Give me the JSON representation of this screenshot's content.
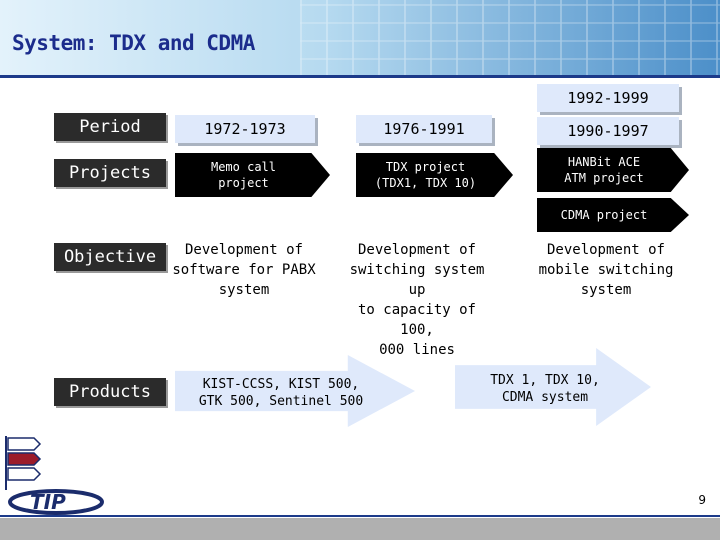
{
  "title": "System: TDX and CDMA",
  "rows": {
    "period_label": "Period",
    "projects_label": "Projects",
    "objective_label": "Objective",
    "products_label": "Products"
  },
  "periods": {
    "p1": "1972-1973",
    "p2": "1976-1991",
    "p3_top": "1992-1999",
    "p3": "1990-1997"
  },
  "projects": {
    "p1": "Memo call\nproject",
    "p2": "TDX project\n(TDX1, TDX 10)",
    "p3": "HANBit ACE\nATM project",
    "p4": "CDMA project"
  },
  "objectives": {
    "o1": "Development of\nsoftware for PABX\nsystem",
    "o2": "Development of\nswitching system up\nto capacity of 100,\n000 lines",
    "o3": "Development of\nmobile switching\nsystem"
  },
  "products": {
    "a1": "KIST-CCSS, KIST 500,\nGTK 500, Sentinel 500",
    "a2": "TDX 1, TDX 10,\nCDMA system"
  },
  "logo_text": "TIP",
  "page_number": "9",
  "colors": {
    "title": "#1b2c8c",
    "label_bg": "#2b2b2b",
    "box_bg": "#dfe9fb",
    "pentagon_bg": "#000000",
    "logo_red": "#9b1b2a",
    "logo_navy": "#1b2c6c"
  }
}
